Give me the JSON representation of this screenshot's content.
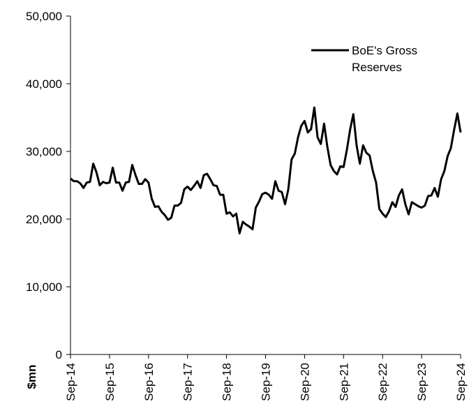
{
  "chart_data": {
    "type": "line",
    "title": "",
    "xlabel": "",
    "ylabel": "$mn",
    "ylim": [
      0,
      50000
    ],
    "y_ticks": [
      0,
      10000,
      20000,
      30000,
      40000,
      50000
    ],
    "y_tick_labels": [
      "0",
      "10,000",
      "20,000",
      "30,000",
      "40,000",
      "50,000"
    ],
    "x_tick_labels": [
      "Sep-14",
      "Sep-15",
      "Sep-16",
      "Sep-17",
      "Sep-18",
      "Sep-19",
      "Sep-20",
      "Sep-21",
      "Sep-22",
      "Sep-23",
      "Sep-24"
    ],
    "grid": false,
    "legend": {
      "position": "top-right",
      "entries": [
        "BoE's Gross Reserves"
      ]
    },
    "series": [
      {
        "name": "BoE's Gross Reserves",
        "color": "#000000",
        "x": [
          "Sep-14",
          "Oct-14",
          "Nov-14",
          "Dec-14",
          "Jan-15",
          "Feb-15",
          "Mar-15",
          "Apr-15",
          "May-15",
          "Jun-15",
          "Jul-15",
          "Aug-15",
          "Sep-15",
          "Oct-15",
          "Nov-15",
          "Dec-15",
          "Jan-16",
          "Feb-16",
          "Mar-16",
          "Apr-16",
          "May-16",
          "Jun-16",
          "Jul-16",
          "Aug-16",
          "Sep-16",
          "Oct-16",
          "Nov-16",
          "Dec-16",
          "Jan-17",
          "Feb-17",
          "Mar-17",
          "Apr-17",
          "May-17",
          "Jun-17",
          "Jul-17",
          "Aug-17",
          "Sep-17",
          "Oct-17",
          "Nov-17",
          "Dec-17",
          "Jan-18",
          "Feb-18",
          "Mar-18",
          "Apr-18",
          "May-18",
          "Jun-18",
          "Jul-18",
          "Aug-18",
          "Sep-18",
          "Oct-18",
          "Nov-18",
          "Dec-18",
          "Jan-19",
          "Feb-19",
          "Mar-19",
          "Apr-19",
          "May-19",
          "Jun-19",
          "Jul-19",
          "Aug-19",
          "Sep-19",
          "Oct-19",
          "Nov-19",
          "Dec-19",
          "Jan-20",
          "Feb-20",
          "Mar-20",
          "Apr-20",
          "May-20",
          "Jun-20",
          "Jul-20",
          "Aug-20",
          "Sep-20",
          "Oct-20",
          "Nov-20",
          "Dec-20",
          "Jan-21",
          "Feb-21",
          "Mar-21",
          "Apr-21",
          "May-21",
          "Jun-21",
          "Jul-21",
          "Aug-21",
          "Sep-21",
          "Oct-21",
          "Nov-21",
          "Dec-21",
          "Jan-22",
          "Feb-22",
          "Mar-22",
          "Apr-22",
          "May-22",
          "Jun-22",
          "Jul-22",
          "Aug-22",
          "Sep-22",
          "Oct-22",
          "Nov-22",
          "Dec-22",
          "Jan-23",
          "Feb-23",
          "Mar-23",
          "Apr-23",
          "May-23",
          "Jun-23",
          "Jul-23",
          "Aug-23",
          "Sep-23",
          "Oct-23",
          "Nov-23",
          "Dec-23",
          "Jan-24",
          "Feb-24",
          "Mar-24",
          "Apr-24",
          "May-24",
          "Jun-24",
          "Jul-24",
          "Aug-24",
          "Sep-24"
        ],
        "values": [
          26000,
          25600,
          25600,
          25300,
          24600,
          25400,
          25500,
          28200,
          26900,
          25000,
          25500,
          25300,
          25400,
          27600,
          25400,
          25400,
          24200,
          25400,
          25500,
          28000,
          26500,
          25200,
          25200,
          25900,
          25400,
          23000,
          21800,
          21900,
          21100,
          20600,
          19900,
          20200,
          22000,
          22000,
          22400,
          24400,
          24800,
          24300,
          24900,
          25600,
          24600,
          26500,
          26700,
          25900,
          25000,
          24900,
          23600,
          23600,
          20800,
          21000,
          20400,
          20800,
          17900,
          19600,
          19200,
          18900,
          18500,
          21700,
          22600,
          23700,
          23900,
          23600,
          23000,
          25600,
          24200,
          24000,
          22200,
          24400,
          28800,
          29700,
          32100,
          33800,
          34500,
          32800,
          33300,
          36500,
          32100,
          31100,
          34100,
          30700,
          28000,
          27100,
          26600,
          27800,
          27700,
          30200,
          33200,
          35500,
          30900,
          28200,
          30900,
          29800,
          29400,
          27100,
          25400,
          21500,
          20800,
          20300,
          21200,
          22500,
          21800,
          23500,
          24400,
          22200,
          20700,
          22500,
          22200,
          21900,
          21700,
          22000,
          23400,
          23500,
          24600,
          23300,
          25900,
          27100,
          29300,
          30500,
          33200,
          35600,
          32800
        ]
      }
    ]
  }
}
